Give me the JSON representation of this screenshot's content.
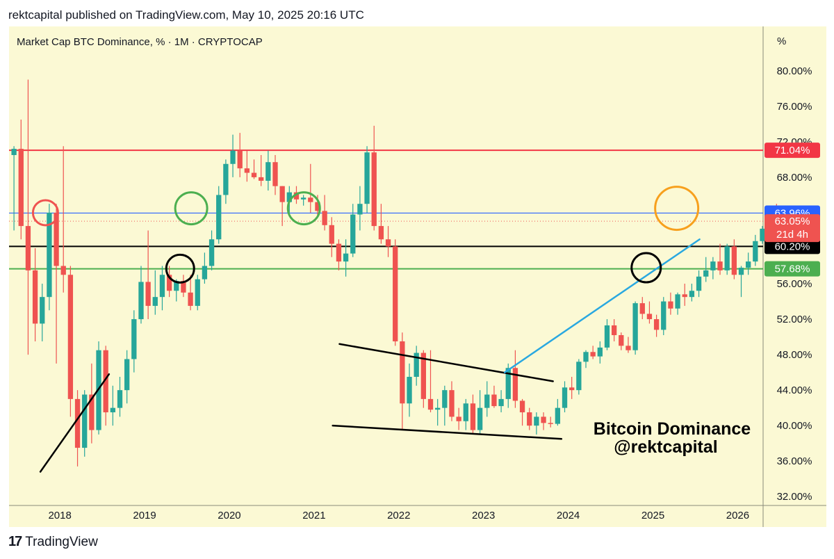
{
  "publisher_line": "rektcapital published on TradingView.com, May 10, 2025 20:16 UTC",
  "footer": {
    "brand": "TradingView",
    "logo_icon": "tradingview-logo-icon"
  },
  "colors": {
    "background": "#fbf9d4",
    "up": "#26a69a",
    "down": "#ef5350",
    "red_level": "#f23645",
    "blue_level": "#2962ff",
    "green_level": "#4caf50",
    "trend_blue": "#29a8e0",
    "circle_red": "#ef5350",
    "circle_green": "#4caf50",
    "circle_black": "#000000",
    "circle_orange": "#f7a01d"
  },
  "chart_data": {
    "type": "candlestick",
    "title": "Market Cap BTC Dominance, % · 1M · CRYPTOCAP",
    "unit_label": "%",
    "ylim": [
      31,
      85
    ],
    "xlim": [
      2017.4,
      2026.3
    ],
    "y_ticks": [
      "80.00%",
      "76.00%",
      "72.00%",
      "68.00%",
      "56.00%",
      "52.00%",
      "48.00%",
      "44.00%",
      "40.00%",
      "36.00%",
      "32.00%"
    ],
    "x_ticks": [
      "2018",
      "2019",
      "2020",
      "2021",
      "2022",
      "2023",
      "2024",
      "2025",
      "2026"
    ],
    "levels": [
      {
        "value": 71.04,
        "label": "71.04%",
        "color": "#f23645"
      },
      {
        "value": 63.96,
        "label": "63.96%",
        "color": "#2962ff"
      },
      {
        "value": 60.2,
        "label": "60.20%",
        "color": "#000000"
      },
      {
        "value": 57.68,
        "label": "57.68%",
        "color": "#4caf50"
      }
    ],
    "current_price": {
      "value": 63.05,
      "label": "63.05%",
      "countdown": "21d 4h",
      "color": "#ef5350"
    },
    "annotation_text": [
      "Bitcoin Dominance",
      "@rektcapital"
    ],
    "candles": [
      {
        "o": 70.5,
        "h": 71.5,
        "l": 62,
        "c": 71.2
      },
      {
        "o": 71.2,
        "h": 74.5,
        "l": 61,
        "c": 62.5
      },
      {
        "o": 62.5,
        "h": 79,
        "l": 48,
        "c": 57.5
      },
      {
        "o": 57.5,
        "h": 60,
        "l": 49.5,
        "c": 51.5
      },
      {
        "o": 51.5,
        "h": 56,
        "l": 49.5,
        "c": 54.5
      },
      {
        "o": 54.5,
        "h": 65,
        "l": 53,
        "c": 64
      },
      {
        "o": 64,
        "h": 65,
        "l": 47,
        "c": 58
      },
      {
        "o": 58,
        "h": 71.5,
        "l": 55,
        "c": 57
      },
      {
        "o": 57,
        "h": 58,
        "l": 41,
        "c": 43
      },
      {
        "o": 43,
        "h": 44,
        "l": 35.4,
        "c": 37.5
      },
      {
        "o": 37.5,
        "h": 44,
        "l": 36.5,
        "c": 43.5
      },
      {
        "o": 43.5,
        "h": 47,
        "l": 38,
        "c": 39.5
      },
      {
        "o": 39.5,
        "h": 49.5,
        "l": 39,
        "c": 48.5
      },
      {
        "o": 48.5,
        "h": 49,
        "l": 40,
        "c": 41.5
      },
      {
        "o": 41.5,
        "h": 44.5,
        "l": 40,
        "c": 42
      },
      {
        "o": 42,
        "h": 45.5,
        "l": 41,
        "c": 44
      },
      {
        "o": 44,
        "h": 48.5,
        "l": 42.5,
        "c": 47.5
      },
      {
        "o": 47.5,
        "h": 53,
        "l": 46,
        "c": 52
      },
      {
        "o": 52,
        "h": 58,
        "l": 51.5,
        "c": 56.2
      },
      {
        "o": 56.2,
        "h": 62,
        "l": 52,
        "c": 53.5
      },
      {
        "o": 53.5,
        "h": 57.5,
        "l": 52.5,
        "c": 54.5
      },
      {
        "o": 54.5,
        "h": 58,
        "l": 53,
        "c": 57
      },
      {
        "o": 57,
        "h": 58,
        "l": 54.5,
        "c": 55.2
      },
      {
        "o": 55.2,
        "h": 56.5,
        "l": 54,
        "c": 56.3
      },
      {
        "o": 56.3,
        "h": 57,
        "l": 54.5,
        "c": 55
      },
      {
        "o": 55,
        "h": 57,
        "l": 53,
        "c": 53.5
      },
      {
        "o": 53.5,
        "h": 57,
        "l": 53,
        "c": 56.5
      },
      {
        "o": 56.5,
        "h": 59.5,
        "l": 56,
        "c": 58
      },
      {
        "o": 58,
        "h": 62,
        "l": 57.5,
        "c": 61
      },
      {
        "o": 61,
        "h": 67,
        "l": 60.5,
        "c": 66
      },
      {
        "o": 66,
        "h": 70,
        "l": 65,
        "c": 69.5
      },
      {
        "o": 69.5,
        "h": 72.8,
        "l": 68,
        "c": 71
      },
      {
        "o": 71,
        "h": 73,
        "l": 68,
        "c": 69
      },
      {
        "o": 69,
        "h": 71,
        "l": 67.5,
        "c": 68.5
      },
      {
        "o": 68.5,
        "h": 70,
        "l": 67.8,
        "c": 68
      },
      {
        "o": 68,
        "h": 70.5,
        "l": 67,
        "c": 67.6
      },
      {
        "o": 67.6,
        "h": 71,
        "l": 66.5,
        "c": 69.7
      },
      {
        "o": 69.7,
        "h": 70.5,
        "l": 66,
        "c": 67
      },
      {
        "o": 67,
        "h": 67,
        "l": 62.5,
        "c": 65.2
      },
      {
        "o": 65.2,
        "h": 67,
        "l": 64,
        "c": 66.3
      },
      {
        "o": 66.3,
        "h": 67,
        "l": 65,
        "c": 65.5
      },
      {
        "o": 65.5,
        "h": 66,
        "l": 64.8,
        "c": 65.7
      },
      {
        "o": 65.7,
        "h": 69.5,
        "l": 64,
        "c": 65.2
      },
      {
        "o": 65.2,
        "h": 66,
        "l": 63.5,
        "c": 64.2
      },
      {
        "o": 64.2,
        "h": 66,
        "l": 62,
        "c": 62.6
      },
      {
        "o": 62.6,
        "h": 63.5,
        "l": 59,
        "c": 60.5
      },
      {
        "o": 60.5,
        "h": 61,
        "l": 57.5,
        "c": 58.5
      },
      {
        "o": 58.5,
        "h": 61,
        "l": 56.8,
        "c": 59.4
      },
      {
        "o": 59.4,
        "h": 65,
        "l": 59,
        "c": 63.8
      },
      {
        "o": 63.8,
        "h": 67,
        "l": 62,
        "c": 65
      },
      {
        "o": 65,
        "h": 71.5,
        "l": 64,
        "c": 70.8
      },
      {
        "o": 70.8,
        "h": 73.8,
        "l": 62,
        "c": 62.5
      },
      {
        "o": 62.5,
        "h": 65,
        "l": 60.5,
        "c": 61
      },
      {
        "o": 61,
        "h": 62.5,
        "l": 59,
        "c": 60.2
      },
      {
        "o": 60.2,
        "h": 61,
        "l": 49,
        "c": 49.5
      },
      {
        "o": 49.5,
        "h": 50.5,
        "l": 39.5,
        "c": 42.5
      },
      {
        "o": 42.5,
        "h": 47,
        "l": 41,
        "c": 45.5
      },
      {
        "o": 45.5,
        "h": 49,
        "l": 44.5,
        "c": 48.2
      },
      {
        "o": 48.2,
        "h": 48.5,
        "l": 42,
        "c": 43
      },
      {
        "o": 43,
        "h": 48.5,
        "l": 41.5,
        "c": 41.8
      },
      {
        "o": 41.8,
        "h": 43,
        "l": 40,
        "c": 42
      },
      {
        "o": 42,
        "h": 44.5,
        "l": 40,
        "c": 44
      },
      {
        "o": 44,
        "h": 45,
        "l": 40.5,
        "c": 41
      },
      {
        "o": 41,
        "h": 42,
        "l": 39.5,
        "c": 40.5
      },
      {
        "o": 40.5,
        "h": 43,
        "l": 39.5,
        "c": 42.5
      },
      {
        "o": 42.5,
        "h": 43.5,
        "l": 39,
        "c": 39.5
      },
      {
        "o": 39.5,
        "h": 44,
        "l": 39,
        "c": 42
      },
      {
        "o": 42,
        "h": 45,
        "l": 41,
        "c": 43.5
      },
      {
        "o": 43.5,
        "h": 44.5,
        "l": 42,
        "c": 42.2
      },
      {
        "o": 42.2,
        "h": 44,
        "l": 41.5,
        "c": 43
      },
      {
        "o": 43,
        "h": 47,
        "l": 42,
        "c": 46.5
      },
      {
        "o": 46.5,
        "h": 48.5,
        "l": 42,
        "c": 42.8
      },
      {
        "o": 42.8,
        "h": 43,
        "l": 40,
        "c": 41.5
      },
      {
        "o": 41.5,
        "h": 42,
        "l": 39.5,
        "c": 40
      },
      {
        "o": 40,
        "h": 41.5,
        "l": 39,
        "c": 41
      },
      {
        "o": 41,
        "h": 41.5,
        "l": 39.5,
        "c": 40.3
      },
      {
        "o": 40.3,
        "h": 41,
        "l": 39.8,
        "c": 40.2
      },
      {
        "o": 40.2,
        "h": 43,
        "l": 40,
        "c": 42
      },
      {
        "o": 42,
        "h": 45,
        "l": 41.5,
        "c": 44.3
      },
      {
        "o": 44.3,
        "h": 45.5,
        "l": 43,
        "c": 44
      },
      {
        "o": 44,
        "h": 47.5,
        "l": 43.5,
        "c": 47.2
      },
      {
        "o": 47.2,
        "h": 48.5,
        "l": 46.5,
        "c": 48.3
      },
      {
        "o": 48.3,
        "h": 49,
        "l": 47.5,
        "c": 47.8
      },
      {
        "o": 47.8,
        "h": 49.5,
        "l": 47,
        "c": 48.8
      },
      {
        "o": 48.8,
        "h": 52,
        "l": 48.5,
        "c": 51.3
      },
      {
        "o": 51.3,
        "h": 52,
        "l": 49.5,
        "c": 50.2
      },
      {
        "o": 50.2,
        "h": 50.5,
        "l": 48.5,
        "c": 49
      },
      {
        "o": 49,
        "h": 50,
        "l": 48.2,
        "c": 48.5
      },
      {
        "o": 48.5,
        "h": 54,
        "l": 48,
        "c": 53.8
      },
      {
        "o": 53.8,
        "h": 54.5,
        "l": 52,
        "c": 52.6
      },
      {
        "o": 52.6,
        "h": 54,
        "l": 51.5,
        "c": 52
      },
      {
        "o": 52,
        "h": 52.5,
        "l": 50,
        "c": 50.8
      },
      {
        "o": 50.8,
        "h": 54.5,
        "l": 50.2,
        "c": 54
      },
      {
        "o": 54,
        "h": 55,
        "l": 52.5,
        "c": 53.2
      },
      {
        "o": 53.2,
        "h": 55,
        "l": 52.5,
        "c": 54.8
      },
      {
        "o": 54.8,
        "h": 56,
        "l": 53.5,
        "c": 54.5
      },
      {
        "o": 54.5,
        "h": 56,
        "l": 54,
        "c": 55.2
      },
      {
        "o": 55.2,
        "h": 57.5,
        "l": 54.5,
        "c": 56.8
      },
      {
        "o": 56.8,
        "h": 59,
        "l": 56.2,
        "c": 57.5
      },
      {
        "o": 57.5,
        "h": 59,
        "l": 56.5,
        "c": 58.5
      },
      {
        "o": 58.5,
        "h": 60.5,
        "l": 57,
        "c": 57.5
      },
      {
        "o": 57.5,
        "h": 60.5,
        "l": 57,
        "c": 60.2
      },
      {
        "o": 60.2,
        "h": 61,
        "l": 56.5,
        "c": 57
      },
      {
        "o": 57,
        "h": 58,
        "l": 54.5,
        "c": 57.8
      },
      {
        "o": 57.8,
        "h": 59.5,
        "l": 57,
        "c": 58.5
      },
      {
        "o": 58.5,
        "h": 61.5,
        "l": 58,
        "c": 60.8
      },
      {
        "o": 60.8,
        "h": 62.5,
        "l": 60.5,
        "c": 62.2
      },
      {
        "o": 62.2,
        "h": 64.5,
        "l": 61.5,
        "c": 64.2
      },
      {
        "o": 64.2,
        "h": 65,
        "l": 62.5,
        "c": 63.05
      }
    ],
    "drawings": [
      {
        "kind": "trendline",
        "color": "#000000",
        "points": [
          [
            2017.77,
            34.8
          ],
          [
            2018.58,
            45.8
          ]
        ]
      },
      {
        "kind": "trendline",
        "color": "#000000",
        "points": [
          [
            2021.3,
            49.2
          ],
          [
            2023.82,
            45.0
          ]
        ]
      },
      {
        "kind": "trendline",
        "color": "#000000",
        "points": [
          [
            2021.22,
            40.0
          ],
          [
            2023.92,
            38.5
          ]
        ]
      },
      {
        "kind": "trendline",
        "color": "#29a8e0",
        "points": [
          [
            2023.25,
            46.0
          ],
          [
            2025.55,
            61.0
          ]
        ]
      },
      {
        "kind": "circle",
        "color": "#ef5350",
        "center": [
          2017.83,
          64.0
        ],
        "radius": 18
      },
      {
        "kind": "circle",
        "color": "#4caf50",
        "center": [
          2019.55,
          64.5
        ],
        "radius": 23
      },
      {
        "kind": "circle",
        "color": "#000000",
        "center": [
          2019.42,
          57.7
        ],
        "radius": 20
      },
      {
        "kind": "circle",
        "color": "#4caf50",
        "center": [
          2020.88,
          64.5
        ],
        "radius": 23
      },
      {
        "kind": "circle",
        "color": "#000000",
        "center": [
          2024.92,
          57.8
        ],
        "radius": 21
      },
      {
        "kind": "circle",
        "color": "#f7a01d",
        "center": [
          2025.28,
          64.5
        ],
        "radius": 31
      }
    ]
  }
}
